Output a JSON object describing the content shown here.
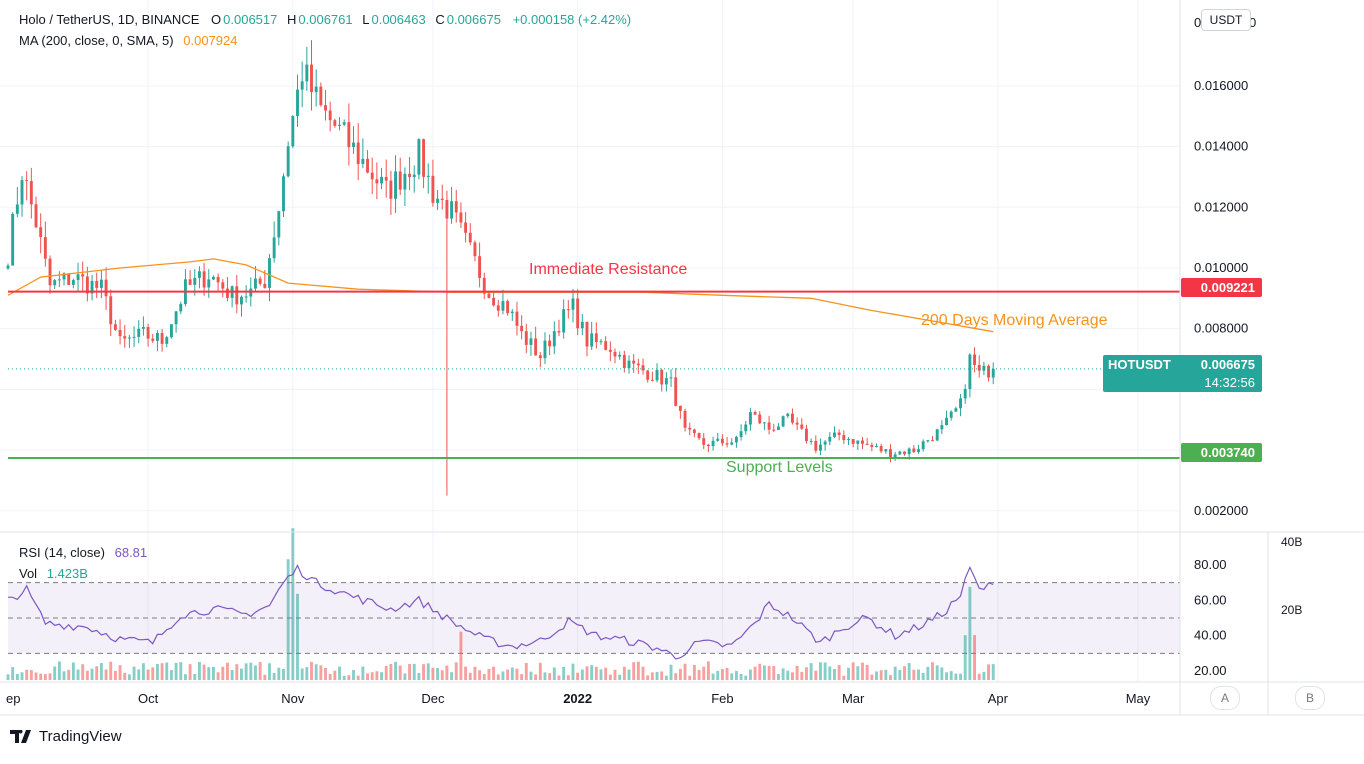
{
  "header": {
    "symbol_line": "Holo / TetherUS, 1D, BINANCE",
    "open_label": "O",
    "open": "0.006517",
    "high_label": "H",
    "high": "0.006761",
    "low_label": "L",
    "low": "0.006463",
    "close_label": "C",
    "close": "0.006675",
    "change": "+0.000158 (+2.42%)",
    "ma_label": "MA (200, close, 0, SMA, 5)",
    "ma_value": "0.007924",
    "rsi_label": "RSI (14, close)",
    "rsi_value": "68.81",
    "vol_label": "Vol",
    "vol_value": "1.423B"
  },
  "currency_button": "USDT",
  "price_axis": {
    "ticks": [
      "0.016000",
      "0.014000",
      "0.012000",
      "0.010000",
      "0.008000",
      "0.002000"
    ],
    "top_partial_left": "0",
    "top_partial_right": "0"
  },
  "rsi_axis": {
    "ticks": [
      "80.00",
      "60.00",
      "40.00",
      "20.00"
    ]
  },
  "vol_axis": {
    "ticks": [
      "40B",
      "20B"
    ]
  },
  "time_axis": {
    "ticks": [
      "ep",
      "Oct",
      "Nov",
      "Dec",
      "2022",
      "Feb",
      "Mar",
      "Apr",
      "May"
    ]
  },
  "annotations": {
    "resistance": "Immediate Resistance",
    "moving_average": "200 Days Moving Average",
    "support": "Support Levels"
  },
  "badges": {
    "resistance_price": "0.009221",
    "support_price": "0.003740",
    "symbol": "HOTUSDT",
    "last_price": "0.006675",
    "countdown": "14:32:56"
  },
  "scale_buttons": [
    "A",
    "B"
  ],
  "brand": "TradingView",
  "colors": {
    "up": "#26a69a",
    "down": "#ef5350",
    "ma": "#f7931a",
    "resistance": "#f23645",
    "support": "#4caf50",
    "rsi": "#7e57c2"
  },
  "chart_data": {
    "type": "candlestick",
    "interval": "1D",
    "x_range": [
      "2021-09-01",
      "2022-05-10"
    ],
    "price_range": [
      0.0013,
      0.0185
    ],
    "resistance_level": 0.009221,
    "support_level": 0.00374,
    "last_close": 0.006675,
    "rsi_overbought": 70,
    "rsi_middle": 50,
    "rsi_oversold": 30,
    "anchors": [
      [
        "2021-09-01",
        0.0105
      ],
      [
        "2021-09-04",
        0.0132
      ],
      [
        "2021-09-07",
        0.0115
      ],
      [
        "2021-09-10",
        0.0094
      ],
      [
        "2021-09-15",
        0.0097
      ],
      [
        "2021-09-21",
        0.0093
      ],
      [
        "2021-09-25",
        0.0075
      ],
      [
        "2021-09-30",
        0.0078
      ],
      [
        "2021-10-04",
        0.0076
      ],
      [
        "2021-10-09",
        0.0093
      ],
      [
        "2021-10-14",
        0.0098
      ],
      [
        "2021-10-19",
        0.0091
      ],
      [
        "2021-10-23",
        0.0092
      ],
      [
        "2021-10-26",
        0.0096
      ],
      [
        "2021-10-29",
        0.012
      ],
      [
        "2021-10-31",
        0.0142
      ],
      [
        "2021-11-03",
        0.0165
      ],
      [
        "2021-11-07",
        0.0152
      ],
      [
        "2021-11-11",
        0.0145
      ],
      [
        "2021-11-16",
        0.0135
      ],
      [
        "2021-11-21",
        0.0125
      ],
      [
        "2021-11-25",
        0.0132
      ],
      [
        "2021-11-28",
        0.0137
      ],
      [
        "2021-12-01",
        0.0125
      ],
      [
        "2021-12-05",
        0.0118
      ],
      [
        "2021-12-09",
        0.0105
      ],
      [
        "2021-12-13",
        0.0092
      ],
      [
        "2021-12-17",
        0.0087
      ],
      [
        "2021-12-20",
        0.0078
      ],
      [
        "2021-12-24",
        0.0071
      ],
      [
        "2021-12-28",
        0.0082
      ],
      [
        "2021-12-31",
        0.0087
      ],
      [
        "2022-01-03",
        0.0076
      ],
      [
        "2022-01-08",
        0.0074
      ],
      [
        "2022-01-12",
        0.0068
      ],
      [
        "2022-01-17",
        0.0065
      ],
      [
        "2022-01-21",
        0.0062
      ],
      [
        "2022-01-24",
        0.0046
      ],
      [
        "2022-01-28",
        0.0042
      ],
      [
        "2022-02-04",
        0.0043
      ],
      [
        "2022-02-07",
        0.0052
      ],
      [
        "2022-02-11",
        0.0047
      ],
      [
        "2022-02-15",
        0.005
      ],
      [
        "2022-02-21",
        0.0041
      ],
      [
        "2022-02-26",
        0.0045
      ],
      [
        "2022-03-03",
        0.0042
      ],
      [
        "2022-03-09",
        0.0039
      ],
      [
        "2022-03-14",
        0.004
      ],
      [
        "2022-03-20",
        0.0047
      ],
      [
        "2022-03-24",
        0.0055
      ],
      [
        "2022-03-26",
        0.007
      ],
      [
        "2022-03-28",
        0.0065
      ],
      [
        "2022-03-31",
        0.0067
      ]
    ],
    "ma200": [
      [
        "2021-09-01",
        0.0091
      ],
      [
        "2021-09-08",
        0.0097
      ],
      [
        "2021-09-25",
        0.01
      ],
      [
        "2021-10-10",
        0.0102
      ],
      [
        "2021-10-15",
        0.0103
      ],
      [
        "2021-10-22",
        0.0101
      ],
      [
        "2021-10-31",
        0.0095
      ],
      [
        "2021-11-15",
        0.0093
      ],
      [
        "2021-12-05",
        0.0092
      ],
      [
        "2022-01-15",
        0.0092
      ],
      [
        "2022-02-01",
        0.0091
      ],
      [
        "2022-02-20",
        0.009
      ],
      [
        "2022-03-05",
        0.0086
      ],
      [
        "2022-03-20",
        0.0082
      ],
      [
        "2022-03-31",
        0.0079
      ]
    ],
    "rsi": [
      [
        "2021-09-01",
        60
      ],
      [
        "2021-09-05",
        66
      ],
      [
        "2021-09-09",
        47
      ],
      [
        "2021-09-18",
        45
      ],
      [
        "2021-09-25",
        38
      ],
      [
        "2021-10-02",
        36
      ],
      [
        "2021-10-08",
        52
      ],
      [
        "2021-10-15",
        55
      ],
      [
        "2021-10-22",
        52
      ],
      [
        "2021-10-27",
        57
      ],
      [
        "2021-10-30",
        70
      ],
      [
        "2021-11-02",
        78
      ],
      [
        "2021-11-06",
        70
      ],
      [
        "2021-11-14",
        62
      ],
      [
        "2021-11-22",
        55
      ],
      [
        "2021-11-28",
        60
      ],
      [
        "2021-12-05",
        48
      ],
      [
        "2021-12-12",
        38
      ],
      [
        "2021-12-18",
        34
      ],
      [
        "2021-12-24",
        37
      ],
      [
        "2021-12-30",
        48
      ],
      [
        "2022-01-05",
        40
      ],
      [
        "2022-01-12",
        37
      ],
      [
        "2022-01-18",
        33
      ],
      [
        "2022-01-22",
        28
      ],
      [
        "2022-01-27",
        36
      ],
      [
        "2022-02-03",
        34
      ],
      [
        "2022-02-08",
        47
      ],
      [
        "2022-02-11",
        58
      ],
      [
        "2022-02-16",
        50
      ],
      [
        "2022-02-22",
        36
      ],
      [
        "2022-02-27",
        45
      ],
      [
        "2022-03-04",
        50
      ],
      [
        "2022-03-10",
        40
      ],
      [
        "2022-03-15",
        45
      ],
      [
        "2022-03-20",
        52
      ],
      [
        "2022-03-24",
        63
      ],
      [
        "2022-03-26",
        78
      ],
      [
        "2022-03-28",
        66
      ],
      [
        "2022-03-31",
        69
      ]
    ],
    "volume_peaks_B": [
      [
        "2021-10-31",
        35
      ],
      [
        "2021-11-01",
        44
      ],
      [
        "2021-11-02",
        25
      ],
      [
        "2021-12-07",
        14
      ],
      [
        "2022-03-25",
        13
      ],
      [
        "2022-03-26",
        27
      ],
      [
        "2022-03-27",
        13
      ]
    ],
    "volume_baseline_B": 3
  }
}
